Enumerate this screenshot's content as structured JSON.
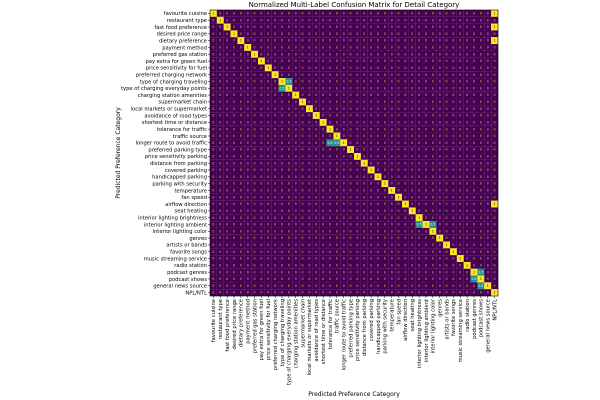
{
  "chart_data": {
    "type": "heatmap",
    "title": "Normalized Multi-Label Confusion Matrix for Detail Category",
    "xlabel": "Predicted Preference Category",
    "ylabel": "Predicted Preference Category",
    "categories": [
      "favourite cuisine",
      "restaurant type",
      "fast food preference",
      "desired price range",
      "dietary preference",
      "payment method",
      "preferred gas station",
      "pay extra for green fuel",
      "price sensitivity for fuel",
      "preferred charging network",
      "type of charging traveling",
      "type of charging everyday points",
      "charging station amenities",
      "supermarket chain",
      "local markets or supermarket",
      "avoidance of road types",
      "shortest time or distance",
      "tolerance for traffic",
      "traffic source",
      "longer route to avoid traffic",
      "preferred parking type",
      "price sensitivity parking",
      "distance from parking",
      "covered parking",
      "handicapped parking",
      "parking with security",
      "temperature",
      "fan speed",
      "airflow direction",
      "seat heating",
      "interior lighting brightness",
      "interior lighting ambient",
      "interior lighting color",
      "genres",
      "artists or bands",
      "favorite songs",
      "music streaming service",
      "radio station",
      "podcast genres",
      "podcast shows",
      "general news source",
      "NPL/NTL"
    ],
    "diagonal_value": 1,
    "off_diagonal_value": 0,
    "value_range": [
      0,
      1
    ],
    "colormap": "viridis",
    "off_diagonal_highlights": [
      {
        "row": 0,
        "col": 41,
        "value": 1
      },
      {
        "row": 2,
        "col": 41,
        "value": 1
      },
      {
        "row": 4,
        "col": 41,
        "value": 1
      },
      {
        "row": 10,
        "col": 11,
        "value": 0.5
      },
      {
        "row": 11,
        "col": 10,
        "value": 0.5
      },
      {
        "row": 19,
        "col": 17,
        "value": 0.5
      },
      {
        "row": 19,
        "col": 18,
        "value": 0.5
      },
      {
        "row": 28,
        "col": 41,
        "value": 1
      },
      {
        "row": 31,
        "col": 30,
        "value": 0.5
      },
      {
        "row": 31,
        "col": 32,
        "value": 0.5
      },
      {
        "row": 38,
        "col": 39,
        "value": 0.5
      },
      {
        "row": 39,
        "col": 38,
        "value": 0.5
      },
      {
        "row": 40,
        "col": 39,
        "value": 0.5
      }
    ]
  }
}
